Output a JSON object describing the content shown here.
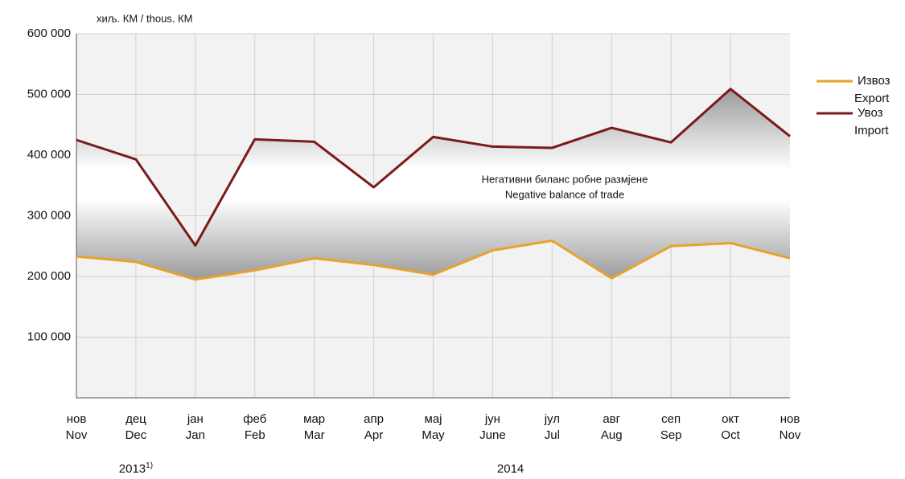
{
  "chart_data": {
    "type": "line",
    "y_unit_label": "хиљ. КМ / thous. КМ",
    "annotation": [
      "Негативни биланс робне размјене",
      "Negative balance of trade"
    ],
    "categories": [
      [
        "нов",
        "Nov"
      ],
      [
        "дец",
        "Dec"
      ],
      [
        "јан",
        "Jan"
      ],
      [
        "феб",
        "Feb"
      ],
      [
        "мар",
        "Mar"
      ],
      [
        "апр",
        "Apr"
      ],
      [
        "мај",
        "May"
      ],
      [
        "јун",
        "June"
      ],
      [
        "јул",
        "Jul"
      ],
      [
        "авг",
        "Aug"
      ],
      [
        "сеп",
        "Sep"
      ],
      [
        "окт",
        "Oct"
      ],
      [
        "нов",
        "Nov"
      ]
    ],
    "year_labels": [
      {
        "text": "2013",
        "note": "1)"
      },
      {
        "text": "2014"
      }
    ],
    "series": [
      {
        "name": [
          "Извоз",
          "Export"
        ],
        "color": "#e8a22a",
        "values": [
          233000,
          224000,
          195000,
          210000,
          230000,
          219000,
          203000,
          243000,
          259000,
          197000,
          250000,
          255000,
          230000
        ]
      },
      {
        "name": [
          "Увоз",
          "Import"
        ],
        "color": "#7b1a1a",
        "values": [
          425000,
          393000,
          251000,
          426000,
          422000,
          347000,
          430000,
          414000,
          412000,
          445000,
          421000,
          509000,
          431000
        ]
      }
    ],
    "ylim": [
      0,
      600000
    ],
    "yticks": [
      {
        "value": 100000,
        "label": "100 000"
      },
      {
        "value": 200000,
        "label": "200 000"
      },
      {
        "value": 300000,
        "label": "300 000"
      },
      {
        "value": 400000,
        "label": "400 000"
      },
      {
        "value": 500000,
        "label": "500 000"
      },
      {
        "value": 600000,
        "label": "600 000"
      }
    ],
    "grid": true,
    "legend": "right"
  }
}
